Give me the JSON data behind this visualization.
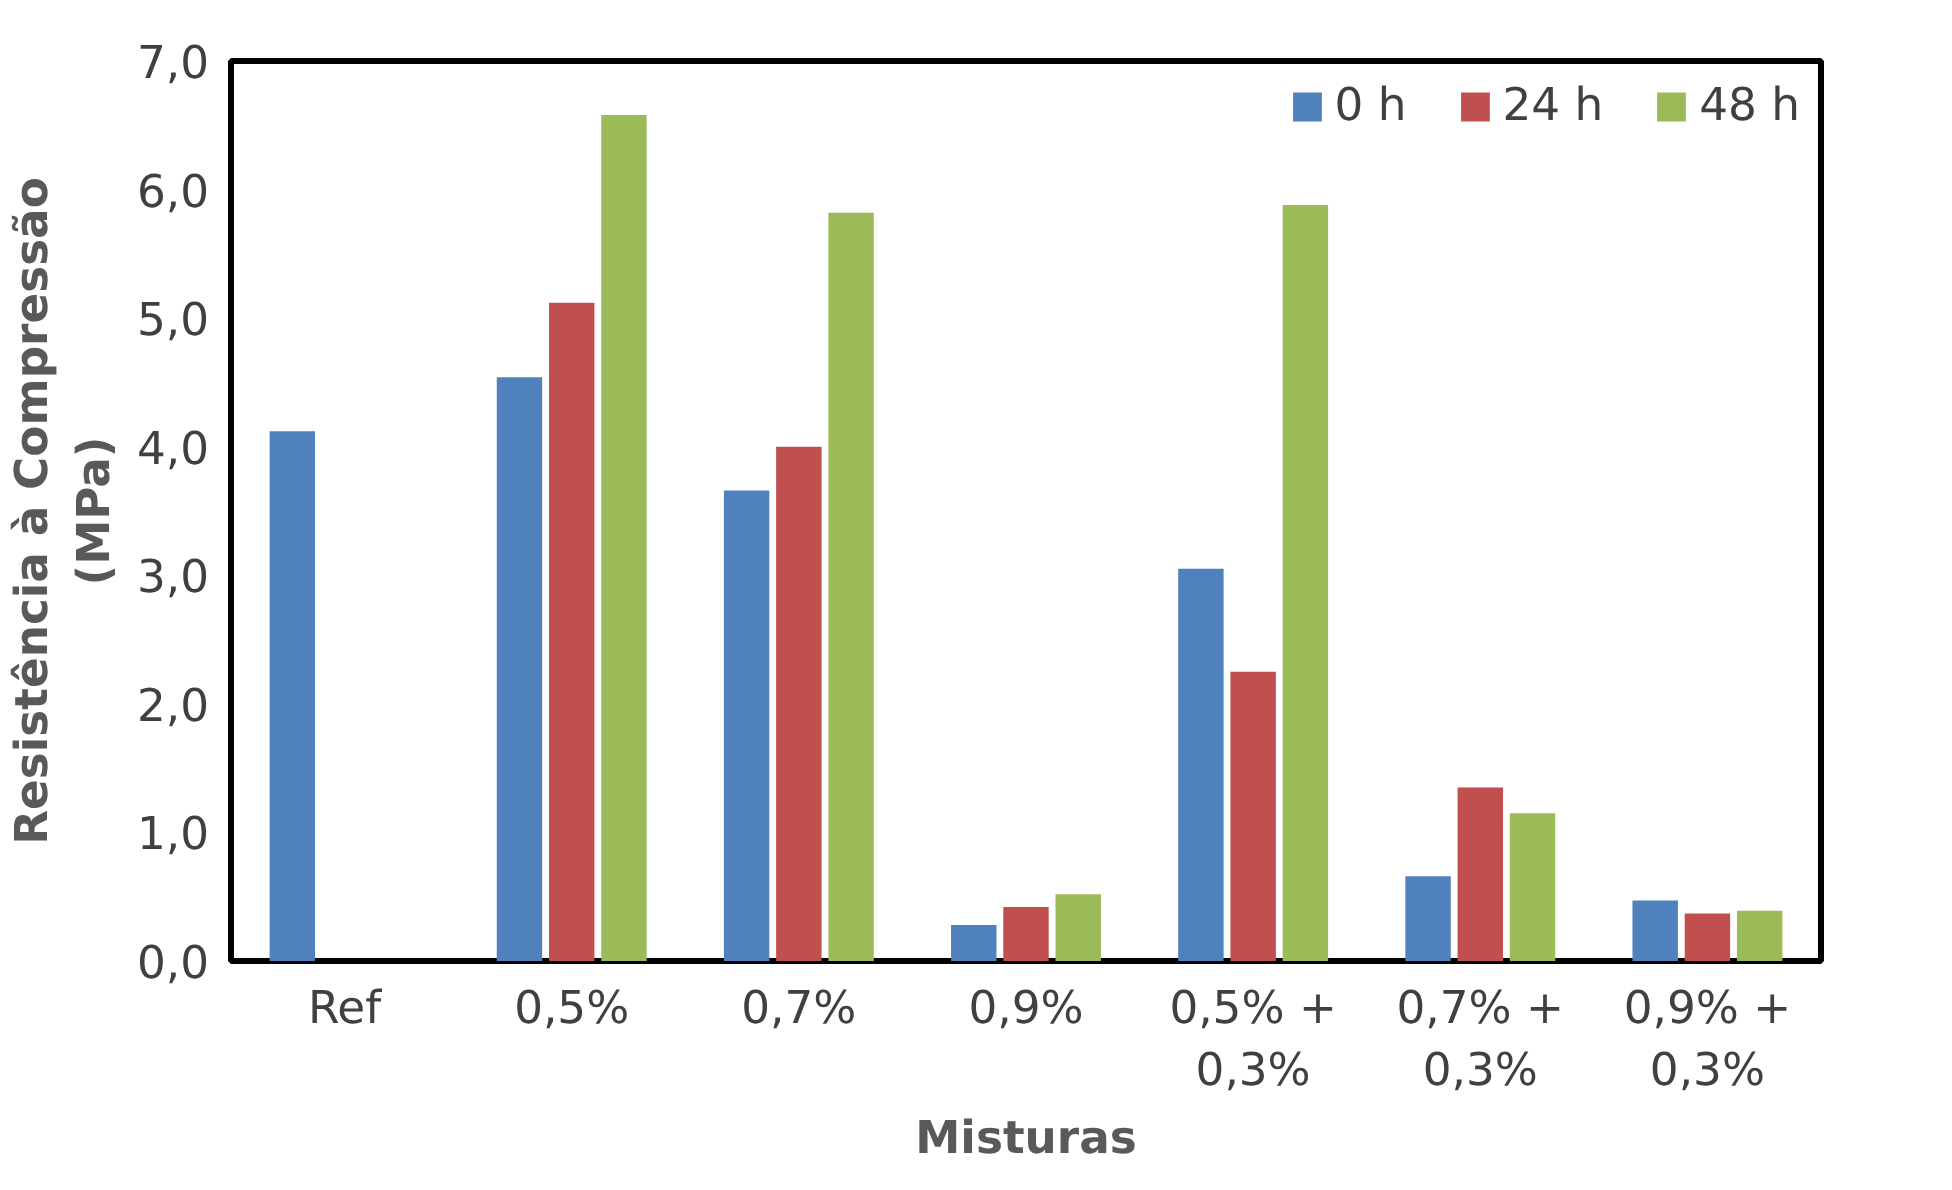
{
  "chart_data": {
    "type": "bar",
    "xlabel": "Misturas",
    "ylabel": "Resistência à Compressão\n(MPa)",
    "categories": [
      "Ref",
      "0,5%",
      "0,7%",
      "0,9%",
      "0,5% +\n0,3%",
      "0,7% +\n0,3%",
      "0,9% +\n0,3%"
    ],
    "series": [
      {
        "name": "0 h",
        "color": "#4f81bd",
        "values": [
          4.12,
          4.54,
          3.66,
          0.28,
          3.05,
          0.66,
          0.47
        ]
      },
      {
        "name": "24 h",
        "color": "#c0504d",
        "values": [
          null,
          5.12,
          4.0,
          0.42,
          2.25,
          1.35,
          0.37
        ]
      },
      {
        "name": "48 h",
        "color": "#9bbb59",
        "values": [
          null,
          6.58,
          5.82,
          0.52,
          5.88,
          1.15,
          0.39
        ]
      }
    ],
    "ylim": [
      0,
      7
    ],
    "yticks": [
      {
        "value": 0,
        "label": "0,0"
      },
      {
        "value": 1,
        "label": "1,0"
      },
      {
        "value": 2,
        "label": "2,0"
      },
      {
        "value": 3,
        "label": "3,0"
      },
      {
        "value": 4,
        "label": "4,0"
      },
      {
        "value": 5,
        "label": "5,0"
      },
      {
        "value": 6,
        "label": "6,0"
      },
      {
        "value": 7,
        "label": "7,0"
      }
    ],
    "legend": "top right",
    "grid": false
  }
}
